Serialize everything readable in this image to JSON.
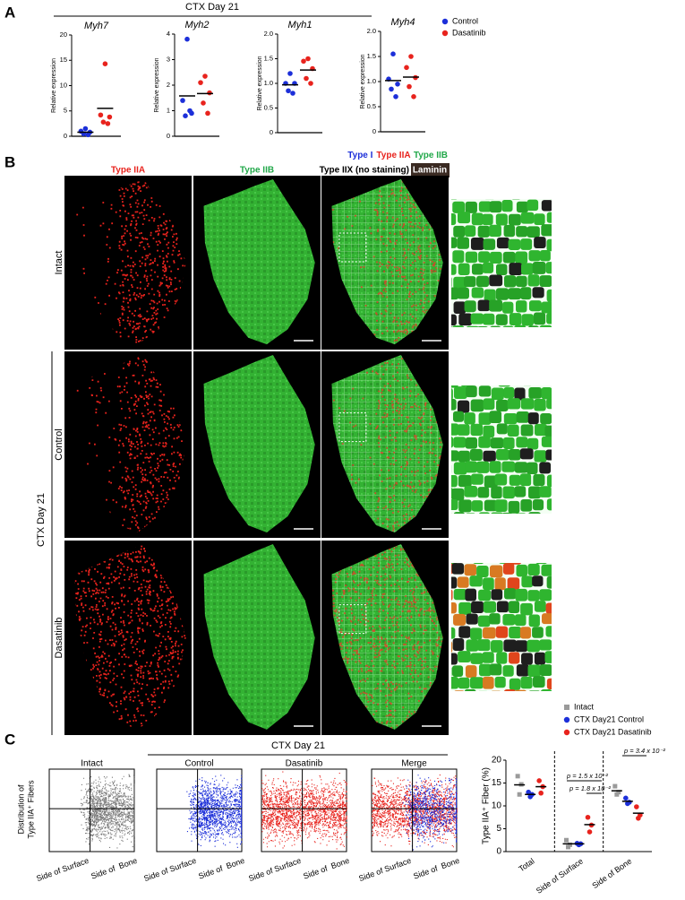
{
  "panel_labels": {
    "a": "A",
    "b": "B",
    "c": "C"
  },
  "chart_data": [
    {
      "type": "strip_panels",
      "header": "CTX Day 21",
      "series": [
        {
          "name": "Control",
          "color": "#1c2fd9"
        },
        {
          "name": "Dasatinib",
          "color": "#e8231d"
        }
      ],
      "plots": [
        {
          "title": "Myh7",
          "y_label": "Relative expression",
          "ylim": [
            0,
            20
          ],
          "yticks": [
            0,
            5,
            10,
            15,
            20
          ],
          "values": [
            [
              1.5,
              1.0,
              0.8,
              0.5,
              0.3
            ],
            [
              14.3,
              4.2,
              3.8,
              2.8,
              2.5
            ]
          ],
          "means": [
            0.8,
            5.5
          ]
        },
        {
          "title": "Myh2",
          "y_label": "Relative expression",
          "ylim": [
            0,
            4
          ],
          "yticks": [
            0,
            1,
            2,
            3,
            4
          ],
          "values": [
            [
              3.8,
              1.4,
              0.9,
              0.8,
              1.0
            ],
            [
              2.35,
              2.1,
              1.7,
              1.3,
              0.9
            ]
          ],
          "means": [
            1.58,
            1.67
          ]
        },
        {
          "title": "Myh1",
          "y_label": "Relative expression",
          "ylim": [
            0,
            2
          ],
          "yticks": [
            0,
            0.5,
            {
              "value": 1,
              "label": "1.0"
            },
            1.5,
            {
              "value": 2,
              "label": "2.0"
            }
          ],
          "values": [
            [
              1.2,
              1.0,
              1.0,
              0.85,
              0.8
            ],
            [
              1.5,
              1.45,
              1.3,
              1.1,
              1.0
            ]
          ],
          "means": [
            0.97,
            1.27
          ]
        },
        {
          "title": "Myh4",
          "y_label": "Relative expression",
          "ylim": [
            0,
            2
          ],
          "yticks": [
            0,
            0.5,
            {
              "value": 1,
              "label": "1.0"
            },
            1.5,
            {
              "value": 2,
              "label": "2.0"
            }
          ],
          "values": [
            [
              1.55,
              1.05,
              0.95,
              0.85,
              0.7
            ],
            [
              1.5,
              1.28,
              1.08,
              0.9,
              0.7
            ]
          ],
          "means": [
            1.02,
            1.09
          ]
        }
      ]
    },
    {
      "type": "grouped_strip",
      "y_label": "Type IIA⁺ Fiber (%)",
      "ylim": [
        0,
        20
      ],
      "yticks": [
        0,
        5,
        10,
        15,
        20
      ],
      "categories": [
        "Total",
        "Side of Surface",
        "Side of Bone"
      ],
      "series": [
        {
          "name": "Intact",
          "color": "#9a9a9a",
          "marker": "square",
          "values": [
            [
              16.5,
              14.7,
              12.5
            ],
            [
              2.5,
              1.5,
              1.0
            ],
            [
              14.3,
              13.0,
              12.5
            ]
          ],
          "means": [
            14.6,
            1.7,
            13.3
          ]
        },
        {
          "name": "CTX Day21 Control",
          "color": "#1c2fd9",
          "marker": "circle",
          "values": [
            [
              13.0,
              12.5,
              12.0
            ],
            [
              1.8,
              1.7,
              1.5
            ],
            [
              11.7,
              10.8,
              10.5
            ]
          ],
          "means": [
            12.5,
            1.7,
            11.0
          ]
        },
        {
          "name": "CTX Day21 Dasatinib",
          "color": "#e8231d",
          "marker": "circle",
          "values": [
            [
              15.5,
              14.2,
              12.8
            ],
            [
              7.5,
              5.8,
              4.3
            ],
            [
              9.8,
              8.0,
              7.3
            ]
          ],
          "means": [
            14.2,
            5.9,
            8.4
          ]
        }
      ],
      "annotations": [
        "p = 1.5 x 10⁻²",
        "p = 1.8 x 10⁻²",
        "p = 3.4 x 10⁻²"
      ]
    }
  ],
  "micrographs": {
    "column_titles": [
      "Type IIA",
      "Type IIB"
    ],
    "column_colors": [
      "#e8231d",
      "#22a84a"
    ],
    "merge_title": [
      {
        "text": "Type I",
        "color": "#1c2fd9"
      },
      {
        "text": "Type IIA",
        "color": "#e8231d"
      },
      {
        "text": "Type IIB",
        "color": "#22a84a"
      }
    ],
    "merge_subtitle": "Type IIX (no staining)",
    "laminin": "Laminin",
    "rows": [
      "Intact",
      "Control",
      "Dasatinib"
    ],
    "group_label": "CTX Day 21"
  },
  "distribution": {
    "header": "CTX Day 21",
    "y_label": [
      "Distribution of",
      "Type IIA⁺ Fibers"
    ],
    "panels": [
      {
        "title": "Intact",
        "x_labels": [
          "Side of Surface",
          "Side of  Bone"
        ]
      },
      {
        "title": "Control",
        "x_labels": [
          "Side of Surface",
          "Side of  Bone"
        ]
      },
      {
        "title": "Dasatinib",
        "x_labels": [
          "Side of Surface",
          "Side of  Bone"
        ]
      },
      {
        "title": "Merge",
        "x_labels": [
          "Side of Surface",
          "Side of  Bone"
        ]
      }
    ]
  }
}
